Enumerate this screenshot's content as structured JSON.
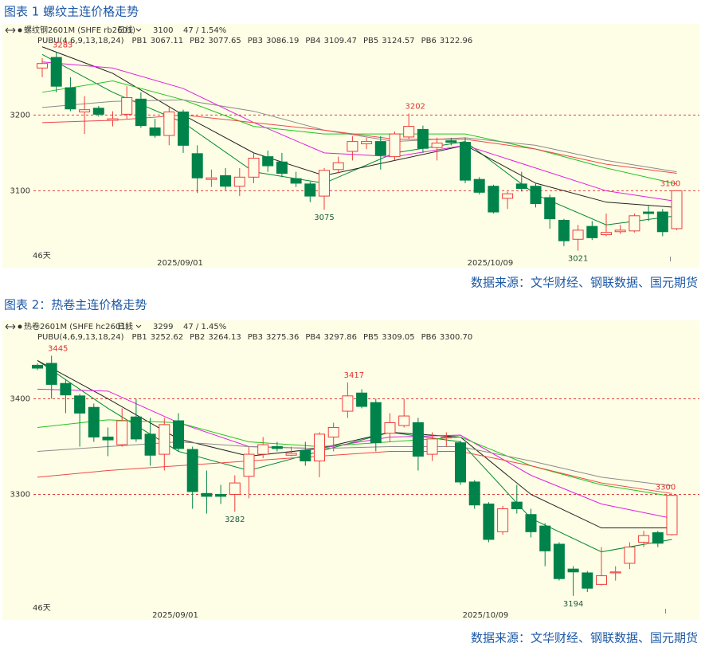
{
  "chart_data": [
    {
      "type": "candlestick",
      "title": "图表 1 螺纹主连价格走势",
      "source": "数据来源：文华财经、钢联数据、国元期货",
      "instrument": "螺纹钢2601M (SHFE rb2601)",
      "period": "日线",
      "last_price": "3100",
      "change": "47 / 1.54%",
      "indicator": "PUBU(4,6,9,13,18,24)",
      "days_label": "46天",
      "up_color": "#f03c3c",
      "down_color": "#00834a",
      "grid": true,
      "categories": [
        null,
        null,
        null,
        null,
        null,
        null,
        null,
        null,
        null,
        null,
        "2025/09/01",
        null,
        null,
        null,
        null,
        null,
        null,
        null,
        null,
        null,
        null,
        null,
        null,
        null,
        null,
        null,
        null,
        null,
        null,
        null,
        null,
        null,
        "2025/10/09",
        null,
        null,
        null,
        null,
        null,
        null,
        null,
        null,
        null,
        null,
        null,
        null,
        null
      ],
      "open": [
        3262,
        3276,
        3236,
        3204,
        3209,
        3193,
        3201,
        3221,
        3183,
        3173,
        3204,
        3149,
        3115,
        3120,
        3106,
        3118,
        3145,
        3138,
        3116,
        3109,
        3093,
        3128,
        3152,
        3162,
        3165,
        3145,
        3171,
        3181,
        3157,
        3166,
        3164,
        3115,
        3106,
        3090,
        3109,
        3106,
        3091,
        3061,
        3036,
        3053,
        3042,
        3046,
        3047,
        3072,
        3072,
        3050
      ],
      "high": [
        3275,
        3283,
        3250,
        3225,
        3212,
        3205,
        3238,
        3230,
        3195,
        3210,
        3207,
        3160,
        3128,
        3130,
        3130,
        3150,
        3153,
        3150,
        3125,
        3112,
        3130,
        3145,
        3172,
        3170,
        3172,
        3178,
        3202,
        3186,
        3170,
        3170,
        3170,
        3118,
        3108,
        3099,
        3125,
        3110,
        3095,
        3063,
        3055,
        3060,
        3070,
        3055,
        3070,
        3080,
        3076,
        3100
      ],
      "low": [
        3250,
        3230,
        3205,
        3175,
        3198,
        3185,
        3195,
        3183,
        3170,
        3160,
        3150,
        3097,
        3105,
        3101,
        3093,
        3110,
        3125,
        3118,
        3105,
        3085,
        3075,
        3123,
        3140,
        3155,
        3128,
        3140,
        3168,
        3150,
        3140,
        3160,
        3110,
        3095,
        3070,
        3076,
        3099,
        3078,
        3050,
        3027,
        3021,
        3035,
        3040,
        3043,
        3045,
        3060,
        3040,
        3048
      ],
      "close": [
        3268,
        3238,
        3208,
        3207,
        3201,
        3195,
        3223,
        3186,
        3173,
        3204,
        3160,
        3117,
        3117,
        3106,
        3118,
        3143,
        3133,
        3123,
        3110,
        3093,
        3127,
        3137,
        3165,
        3165,
        3147,
        3175,
        3185,
        3156,
        3163,
        3164,
        3114,
        3098,
        3072,
        3096,
        3103,
        3083,
        3063,
        3034,
        3048,
        3038,
        3045,
        3048,
        3067,
        3070,
        3046,
        3100
      ],
      "series": [
        {
          "name": "PB1",
          "legend_value": "3067.11",
          "color": "#008a2e",
          "x": [
            0,
            5,
            10,
            15,
            20,
            25,
            30,
            35,
            40,
            45
          ],
          "values": [
            3280,
            3230,
            3190,
            3125,
            3110,
            3150,
            3165,
            3095,
            3055,
            3067
          ]
        },
        {
          "name": "PB2",
          "legend_value": "3077.65",
          "color": "#222222",
          "x": [
            0,
            5,
            10,
            15,
            20,
            25,
            30,
            35,
            40,
            45
          ],
          "values": [
            3290,
            3255,
            3200,
            3150,
            3120,
            3140,
            3160,
            3110,
            3085,
            3078
          ]
        },
        {
          "name": "PB3",
          "legend_value": "3086.19",
          "color": "#e020e0",
          "x": [
            0,
            5,
            10,
            15,
            20,
            25,
            30,
            35,
            40,
            45
          ],
          "values": [
            3270,
            3262,
            3235,
            3190,
            3150,
            3145,
            3160,
            3130,
            3100,
            3086
          ]
        },
        {
          "name": "PB4",
          "legend_value": "3109.47",
          "color": "#22c422",
          "x": [
            0,
            5,
            10,
            15,
            20,
            25,
            30,
            35,
            40,
            45
          ],
          "values": [
            3230,
            3245,
            3220,
            3185,
            3175,
            3175,
            3175,
            3155,
            3130,
            3109
          ]
        },
        {
          "name": "PB5",
          "legend_value": "3124.57",
          "color": "#8a8a8a",
          "x": [
            0,
            5,
            10,
            15,
            20,
            25,
            30,
            35,
            40,
            45
          ],
          "values": [
            3210,
            3218,
            3220,
            3205,
            3180,
            3165,
            3170,
            3160,
            3140,
            3125
          ]
        },
        {
          "name": "PB6",
          "legend_value": "3122.96",
          "color": "#f04848",
          "x": [
            0,
            5,
            10,
            15,
            20,
            25,
            30,
            35,
            40,
            45
          ],
          "values": [
            3190,
            3193,
            3200,
            3190,
            3180,
            3168,
            3168,
            3155,
            3135,
            3123
          ]
        }
      ],
      "annotations": [
        3283,
        3202,
        3075,
        3021,
        3100
      ],
      "ylim": [
        3010,
        3295
      ],
      "yticks": [
        3200,
        3100
      ]
    },
    {
      "type": "candlestick",
      "title": "图表 2：热卷主连价格走势",
      "source": "数据来源：文华财经、钢联数据、国元期货",
      "instrument": "热卷2601M (SHFE hc2601)",
      "period": "日线",
      "last_price": "3299",
      "change": "47 / 1.45%",
      "indicator": "PUBU(4,6,9,13,18,24)",
      "days_label": "46天",
      "up_color": "#f03c3c",
      "down_color": "#00834a",
      "grid": true,
      "categories": [
        null,
        null,
        null,
        null,
        null,
        null,
        null,
        null,
        null,
        null,
        "2025/09/01",
        null,
        null,
        null,
        null,
        null,
        null,
        null,
        null,
        null,
        null,
        null,
        null,
        null,
        null,
        null,
        null,
        null,
        null,
        null,
        null,
        null,
        "2025/10/09",
        null,
        null,
        null,
        null,
        null,
        null,
        null,
        null,
        null,
        null,
        null,
        null,
        null
      ],
      "open": [
        3435,
        3437,
        3416,
        3403,
        3391,
        3360,
        3352,
        3381,
        3363,
        3342,
        3377,
        3347,
        3301,
        3300,
        3300,
        3319,
        3342,
        3350,
        3341,
        3346,
        3335,
        3360,
        3387,
        3406,
        3396,
        3364,
        3372,
        3375,
        3342,
        3359,
        3354,
        3313,
        3290,
        3261,
        3292,
        3279,
        3267,
        3248,
        3222,
        3218,
        3206,
        3218,
        3228,
        3250,
        3260,
        3258
      ],
      "high": [
        3437,
        3445,
        3420,
        3405,
        3395,
        3370,
        3390,
        3400,
        3380,
        3380,
        3385,
        3350,
        3325,
        3310,
        3320,
        3350,
        3360,
        3355,
        3350,
        3355,
        3365,
        3375,
        3417,
        3410,
        3400,
        3385,
        3400,
        3380,
        3365,
        3365,
        3356,
        3315,
        3292,
        3288,
        3310,
        3285,
        3270,
        3250,
        3225,
        3220,
        3245,
        3225,
        3250,
        3262,
        3262,
        3300
      ],
      "low": [
        3430,
        3400,
        3385,
        3350,
        3355,
        3340,
        3350,
        3355,
        3330,
        3325,
        3345,
        3285,
        3280,
        3290,
        3282,
        3296,
        3338,
        3345,
        3340,
        3330,
        3318,
        3345,
        3380,
        3390,
        3345,
        3355,
        3370,
        3325,
        3335,
        3350,
        3310,
        3285,
        3250,
        3258,
        3280,
        3255,
        3225,
        3210,
        3194,
        3198,
        3205,
        3210,
        3222,
        3245,
        3245,
        3257
      ],
      "close": [
        3432,
        3415,
        3404,
        3385,
        3360,
        3357,
        3377,
        3358,
        3341,
        3373,
        3348,
        3303,
        3298,
        3298,
        3312,
        3342,
        3352,
        3348,
        3343,
        3335,
        3363,
        3370,
        3403,
        3392,
        3354,
        3375,
        3382,
        3340,
        3358,
        3360,
        3313,
        3289,
        3253,
        3285,
        3285,
        3261,
        3241,
        3212,
        3219,
        3202,
        3215,
        3219,
        3245,
        3257,
        3249,
        3299
      ],
      "series": [
        {
          "name": "PB1",
          "legend_value": "3252.62",
          "color": "#008a2e",
          "x": [
            0,
            5,
            10,
            15,
            20,
            25,
            30,
            35,
            40,
            45
          ],
          "values": [
            3440,
            3390,
            3345,
            3325,
            3345,
            3365,
            3355,
            3275,
            3240,
            3253
          ]
        },
        {
          "name": "PB2",
          "legend_value": "3264.13",
          "color": "#222222",
          "x": [
            0,
            5,
            10,
            15,
            20,
            25,
            30,
            35,
            40,
            45
          ],
          "values": [
            3440,
            3400,
            3358,
            3340,
            3348,
            3365,
            3360,
            3300,
            3265,
            3265
          ]
        },
        {
          "name": "PB3",
          "legend_value": "3275.36",
          "color": "#e020e0",
          "x": [
            0,
            5,
            10,
            15,
            20,
            25,
            30,
            35,
            40,
            45
          ],
          "values": [
            3410,
            3408,
            3375,
            3350,
            3348,
            3360,
            3362,
            3320,
            3290,
            3275
          ]
        },
        {
          "name": "PB4",
          "legend_value": "3297.86",
          "color": "#22c422",
          "x": [
            0,
            5,
            10,
            15,
            20,
            25,
            30,
            35,
            40,
            45
          ],
          "values": [
            3370,
            3378,
            3375,
            3355,
            3350,
            3355,
            3360,
            3330,
            3310,
            3298
          ]
        },
        {
          "name": "PB5",
          "legend_value": "3309.05",
          "color": "#8a8a8a",
          "x": [
            0,
            5,
            10,
            15,
            20,
            25,
            30,
            35,
            40,
            45
          ],
          "values": [
            3345,
            3350,
            3355,
            3350,
            3348,
            3350,
            3350,
            3335,
            3318,
            3309
          ]
        },
        {
          "name": "PB6",
          "legend_value": "3300.70",
          "color": "#f04848",
          "x": [
            0,
            5,
            10,
            15,
            20,
            25,
            30,
            35,
            40,
            45
          ],
          "values": [
            3318,
            3325,
            3330,
            3335,
            3340,
            3345,
            3345,
            3330,
            3312,
            3301
          ]
        }
      ],
      "annotations": [
        3445,
        3417,
        3282,
        3194,
        3300
      ],
      "ylim": [
        3178,
        3452
      ],
      "yticks": [
        3400,
        3300
      ]
    }
  ]
}
